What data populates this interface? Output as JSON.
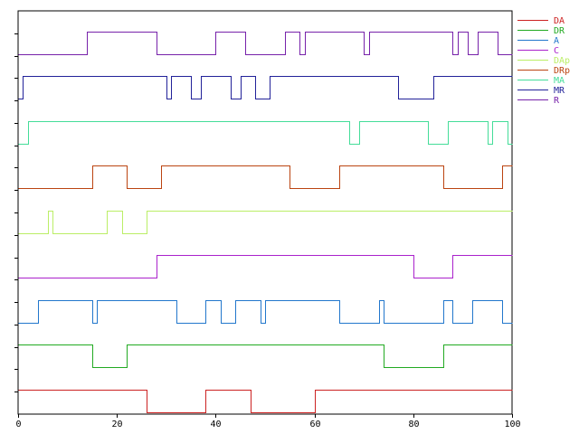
{
  "chart_data": {
    "type": "line",
    "style": "digital-timing-waveforms",
    "xlim": [
      0,
      100
    ],
    "x_ticks": [
      0,
      20,
      40,
      60,
      80,
      100
    ],
    "x_tick_labels": [
      "0",
      "20",
      "40",
      "60",
      "80",
      "100"
    ],
    "grid": false,
    "legend_position": "right",
    "series": [
      {
        "name": "DA",
        "color": "#cc2222",
        "x": [
          0,
          26,
          26,
          38,
          38,
          47,
          47,
          60,
          60,
          100
        ],
        "y": [
          1,
          1,
          0,
          0,
          1,
          1,
          0,
          0,
          1,
          1
        ]
      },
      {
        "name": "DR",
        "color": "#22aa22",
        "x": [
          0,
          15,
          15,
          22,
          22,
          74,
          74,
          86,
          86,
          100
        ],
        "y": [
          1,
          1,
          0,
          0,
          1,
          1,
          0,
          0,
          1,
          1
        ]
      },
      {
        "name": "A",
        "color": "#2277cc",
        "x": [
          0,
          4,
          4,
          15,
          15,
          16,
          16,
          32,
          32,
          38,
          38,
          41,
          41,
          44,
          44,
          49,
          49,
          50,
          50,
          65,
          65,
          73,
          73,
          74,
          74,
          86,
          86,
          88,
          88,
          92,
          92,
          98,
          98,
          100
        ],
        "y": [
          0,
          0,
          1,
          1,
          0,
          0,
          1,
          1,
          0,
          0,
          1,
          1,
          0,
          0,
          1,
          1,
          0,
          0,
          1,
          1,
          0,
          0,
          1,
          1,
          0,
          0,
          1,
          1,
          0,
          0,
          1,
          1,
          0,
          0
        ]
      },
      {
        "name": "C",
        "color": "#aa22cc",
        "x": [
          0,
          28,
          28,
          80,
          80,
          88,
          88,
          100
        ],
        "y": [
          0,
          0,
          1,
          1,
          0,
          0,
          1,
          1
        ]
      },
      {
        "name": "DAp",
        "color": "#bbee66",
        "x": [
          0,
          6,
          6,
          7,
          7,
          18,
          18,
          21,
          21,
          26,
          26,
          100
        ],
        "y": [
          0,
          0,
          1,
          1,
          0,
          0,
          1,
          1,
          0,
          0,
          1,
          1
        ]
      },
      {
        "name": "DRp",
        "color": "#bb4411",
        "x": [
          0,
          15,
          15,
          22,
          22,
          29,
          29,
          55,
          55,
          65,
          65,
          86,
          86,
          98,
          98,
          100
        ],
        "y": [
          0,
          0,
          1,
          1,
          0,
          0,
          1,
          1,
          0,
          0,
          1,
          1,
          0,
          0,
          1,
          1
        ]
      },
      {
        "name": "MA",
        "color": "#44dd99",
        "x": [
          0,
          2,
          2,
          67,
          67,
          69,
          69,
          83,
          83,
          87,
          87,
          95,
          95,
          96,
          96,
          99,
          99,
          100
        ],
        "y": [
          0,
          0,
          1,
          1,
          0,
          0,
          1,
          1,
          0,
          0,
          1,
          1,
          0,
          0,
          1,
          1,
          0,
          0
        ]
      },
      {
        "name": "MR",
        "color": "#222299",
        "x": [
          0,
          1,
          1,
          30,
          30,
          31,
          31,
          35,
          35,
          37,
          37,
          43,
          43,
          45,
          45,
          48,
          48,
          51,
          51,
          77,
          77,
          84,
          84,
          100
        ],
        "y": [
          0,
          0,
          1,
          1,
          0,
          0,
          1,
          1,
          0,
          0,
          1,
          1,
          0,
          0,
          1,
          1,
          0,
          0,
          1,
          1,
          0,
          0,
          1,
          1
        ]
      },
      {
        "name": "R",
        "color": "#7722aa",
        "x": [
          0,
          14,
          14,
          28,
          28,
          40,
          40,
          46,
          46,
          54,
          54,
          57,
          57,
          58,
          58,
          70,
          70,
          71,
          71,
          88,
          88,
          89,
          89,
          91,
          91,
          93,
          93,
          97,
          97,
          100
        ],
        "y": [
          0,
          0,
          1,
          1,
          0,
          0,
          1,
          1,
          0,
          0,
          1,
          1,
          0,
          0,
          1,
          1,
          0,
          0,
          1,
          1,
          0,
          0,
          1,
          1,
          0,
          0,
          1,
          1,
          0,
          0
        ]
      }
    ]
  },
  "colors": {
    "axis": "#000000",
    "background": "#ffffff"
  }
}
